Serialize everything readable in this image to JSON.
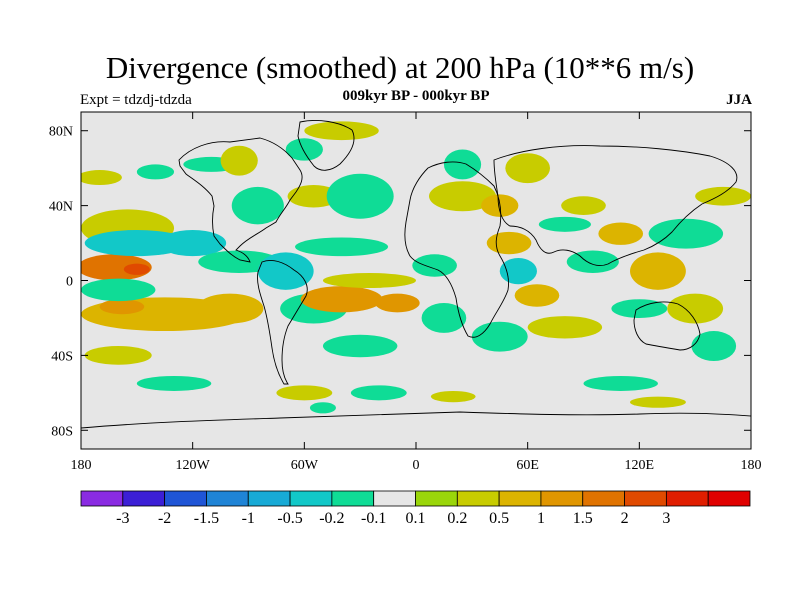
{
  "title": "Divergence (smoothed) at 200 hPa (10**6 m/s)",
  "experiment": "Expt = tdzdj-tdzda",
  "subtitle": "009kyr BP - 000kyr BP",
  "season": "JJA",
  "map": {
    "projection": "cylindrical-equidistant",
    "lon_range": [
      -180,
      180
    ],
    "lat_range": [
      -90,
      90
    ],
    "y_ticks": [
      {
        "lat": 80,
        "label": "80N"
      },
      {
        "lat": 40,
        "label": "40N"
      },
      {
        "lat": 0,
        "label": "0"
      },
      {
        "lat": -40,
        "label": "40S"
      },
      {
        "lat": -80,
        "label": "80S"
      }
    ],
    "x_ticks": [
      {
        "lon": -180,
        "label": "180"
      },
      {
        "lon": -120,
        "label": "120W"
      },
      {
        "lon": -60,
        "label": "60W"
      },
      {
        "lon": 0,
        "label": "0"
      },
      {
        "lon": 60,
        "label": "60E"
      },
      {
        "lon": 120,
        "label": "120E"
      },
      {
        "lon": 180,
        "label": "180"
      }
    ]
  },
  "colorbar": {
    "colors": [
      "#8a2be2",
      "#3c1fd6",
      "#1f55d6",
      "#1f84d6",
      "#17aad6",
      "#12c8c8",
      "#0fdc96",
      "#e6e6e6",
      "#9ad60a",
      "#c8cc00",
      "#dcb400",
      "#e09600",
      "#e07300",
      "#e04a00",
      "#e01e00",
      "#e00000"
    ],
    "labels": [
      "-3",
      "-2",
      "-1.5",
      "-1",
      "-0.5",
      "-0.2",
      "-0.1",
      "0.1",
      "0.2",
      "0.5",
      "1",
      "1.5",
      "2",
      "3"
    ]
  },
  "chart_data": {
    "type": "heatmap",
    "title": "Divergence (smoothed) at 200 hPa (10**6 m/s)",
    "units": "10**6 m/s",
    "levels": [
      -3,
      -2,
      -1.5,
      -1,
      -0.5,
      -0.2,
      -0.1,
      0.1,
      0.2,
      0.5,
      1,
      1.5,
      2,
      3
    ],
    "features": [
      {
        "lon": -162,
        "lat": 7,
        "value": 1.5,
        "rx": 20,
        "ry": 7
      },
      {
        "lon": -150,
        "lat": 6,
        "value": 2,
        "rx": 7,
        "ry": 3
      },
      {
        "lon": -135,
        "lat": -18,
        "value": 0.5,
        "rx": 45,
        "ry": 9
      },
      {
        "lon": -158,
        "lat": -14,
        "value": 1,
        "rx": 12,
        "ry": 4
      },
      {
        "lon": -155,
        "lat": 28,
        "value": 0.2,
        "rx": 25,
        "ry": 10
      },
      {
        "lon": -170,
        "lat": 55,
        "value": 0.2,
        "rx": 12,
        "ry": 4
      },
      {
        "lon": -140,
        "lat": 58,
        "value": -0.2,
        "rx": 10,
        "ry": 4
      },
      {
        "lon": -110,
        "lat": 62,
        "value": -0.2,
        "rx": 15,
        "ry": 4
      },
      {
        "lon": -160,
        "lat": -5,
        "value": -0.2,
        "rx": 20,
        "ry": 6
      },
      {
        "lon": -150,
        "lat": 20,
        "value": -0.5,
        "rx": 28,
        "ry": 7
      },
      {
        "lon": -160,
        "lat": -40,
        "value": 0.2,
        "rx": 18,
        "ry": 5
      },
      {
        "lon": -130,
        "lat": -55,
        "value": -0.2,
        "rx": 20,
        "ry": 4
      },
      {
        "lon": -120,
        "lat": 20,
        "value": -0.5,
        "rx": 18,
        "ry": 7
      },
      {
        "lon": -95,
        "lat": 10,
        "value": -0.2,
        "rx": 22,
        "ry": 6
      },
      {
        "lon": -100,
        "lat": -15,
        "value": 0.5,
        "rx": 18,
        "ry": 8
      },
      {
        "lon": -85,
        "lat": 40,
        "value": -0.2,
        "rx": 14,
        "ry": 10
      },
      {
        "lon": -95,
        "lat": 64,
        "value": 0.2,
        "rx": 10,
        "ry": 8
      },
      {
        "lon": -40,
        "lat": 80,
        "value": 0.2,
        "rx": 20,
        "ry": 5
      },
      {
        "lon": -60,
        "lat": 70,
        "value": -0.2,
        "rx": 10,
        "ry": 6
      },
      {
        "lon": -55,
        "lat": 45,
        "value": 0.2,
        "rx": 14,
        "ry": 6
      },
      {
        "lon": -30,
        "lat": 45,
        "value": -0.2,
        "rx": 18,
        "ry": 12
      },
      {
        "lon": -40,
        "lat": 18,
        "value": -0.2,
        "rx": 25,
        "ry": 5
      },
      {
        "lon": -70,
        "lat": 5,
        "value": -0.5,
        "rx": 15,
        "ry": 10
      },
      {
        "lon": -55,
        "lat": -15,
        "value": -0.2,
        "rx": 18,
        "ry": 8
      },
      {
        "lon": -40,
        "lat": -10,
        "value": 1,
        "rx": 22,
        "ry": 7
      },
      {
        "lon": -10,
        "lat": -12,
        "value": 1,
        "rx": 12,
        "ry": 5
      },
      {
        "lon": -25,
        "lat": 0,
        "value": 0.2,
        "rx": 25,
        "ry": 4
      },
      {
        "lon": -30,
        "lat": -35,
        "value": -0.2,
        "rx": 20,
        "ry": 6
      },
      {
        "lon": -20,
        "lat": -60,
        "value": -0.2,
        "rx": 15,
        "ry": 4
      },
      {
        "lon": -60,
        "lat": -60,
        "value": 0.2,
        "rx": 15,
        "ry": 4
      },
      {
        "lon": -50,
        "lat": -68,
        "value": -0.2,
        "rx": 7,
        "ry": 3
      },
      {
        "lon": 10,
        "lat": 8,
        "value": -0.2,
        "rx": 12,
        "ry": 6
      },
      {
        "lon": 15,
        "lat": -20,
        "value": -0.2,
        "rx": 12,
        "ry": 8
      },
      {
        "lon": 25,
        "lat": 45,
        "value": 0.2,
        "rx": 18,
        "ry": 8
      },
      {
        "lon": 45,
        "lat": 40,
        "value": 0.5,
        "rx": 10,
        "ry": 6
      },
      {
        "lon": 60,
        "lat": 60,
        "value": 0.2,
        "rx": 12,
        "ry": 8
      },
      {
        "lon": 25,
        "lat": 62,
        "value": -0.2,
        "rx": 10,
        "ry": 8
      },
      {
        "lon": 50,
        "lat": 20,
        "value": 0.5,
        "rx": 12,
        "ry": 6
      },
      {
        "lon": 55,
        "lat": 5,
        "value": -0.5,
        "rx": 10,
        "ry": 7
      },
      {
        "lon": 45,
        "lat": -30,
        "value": -0.2,
        "rx": 15,
        "ry": 8
      },
      {
        "lon": 65,
        "lat": -8,
        "value": 0.5,
        "rx": 12,
        "ry": 6
      },
      {
        "lon": 80,
        "lat": -25,
        "value": 0.2,
        "rx": 20,
        "ry": 6
      },
      {
        "lon": 90,
        "lat": 40,
        "value": 0.2,
        "rx": 12,
        "ry": 5
      },
      {
        "lon": 80,
        "lat": 30,
        "value": -0.2,
        "rx": 14,
        "ry": 4
      },
      {
        "lon": 95,
        "lat": 10,
        "value": -0.2,
        "rx": 14,
        "ry": 6
      },
      {
        "lon": 110,
        "lat": 25,
        "value": 0.5,
        "rx": 12,
        "ry": 6
      },
      {
        "lon": 130,
        "lat": 5,
        "value": 0.5,
        "rx": 15,
        "ry": 10
      },
      {
        "lon": 120,
        "lat": -15,
        "value": -0.2,
        "rx": 15,
        "ry": 5
      },
      {
        "lon": 145,
        "lat": 25,
        "value": -0.2,
        "rx": 20,
        "ry": 8
      },
      {
        "lon": 150,
        "lat": -15,
        "value": 0.2,
        "rx": 15,
        "ry": 8
      },
      {
        "lon": 165,
        "lat": 45,
        "value": 0.2,
        "rx": 15,
        "ry": 5
      },
      {
        "lon": 160,
        "lat": -35,
        "value": -0.2,
        "rx": 12,
        "ry": 8
      },
      {
        "lon": 110,
        "lat": -55,
        "value": -0.2,
        "rx": 20,
        "ry": 4
      },
      {
        "lon": 20,
        "lat": -62,
        "value": 0.2,
        "rx": 12,
        "ry": 3
      },
      {
        "lon": 130,
        "lat": -65,
        "value": 0.2,
        "rx": 15,
        "ry": 3
      }
    ]
  }
}
